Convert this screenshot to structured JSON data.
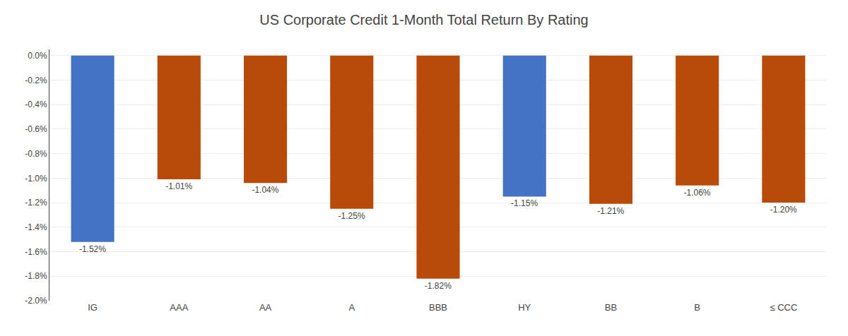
{
  "chart_data": {
    "type": "bar",
    "title": "US Corporate Credit 1-Month Total Return By Rating",
    "categories": [
      "IG",
      "AAA",
      "AA",
      "A",
      "BBB",
      "HY",
      "BB",
      "B",
      "≤ CCC"
    ],
    "values": [
      -1.52,
      -1.01,
      -1.04,
      -1.25,
      -1.82,
      -1.15,
      -1.21,
      -1.06,
      -1.2
    ],
    "value_labels": [
      "-1.52%",
      "-1.01%",
      "-1.04%",
      "-1.25%",
      "-1.82%",
      "-1.15%",
      "-1.21%",
      "-1.06%",
      "-1.20%"
    ],
    "colors": [
      "#4472C4",
      "#B84A0A",
      "#B84A0A",
      "#B84A0A",
      "#B84A0A",
      "#4472C4",
      "#B84A0A",
      "#B84A0A",
      "#B84A0A"
    ],
    "ylim": [
      -2.0,
      0.05
    ],
    "yticks": [
      {
        "value": 0.0,
        "label": "0.0%"
      },
      {
        "value": -0.2,
        "label": "-0.2%"
      },
      {
        "value": -0.4,
        "label": "-0.4%"
      },
      {
        "value": -0.6,
        "label": "-0.6%"
      },
      {
        "value": -0.8,
        "label": "-0.8%"
      },
      {
        "value": -1.0,
        "label": "-1.0%"
      },
      {
        "value": -1.2,
        "label": "-1.2%"
      },
      {
        "value": -1.4,
        "label": "-1.4%"
      },
      {
        "value": -1.6,
        "label": "-1.6%"
      },
      {
        "value": -1.8,
        "label": "-1.8%"
      },
      {
        "value": -2.0,
        "label": "-2.0%"
      }
    ],
    "grid": true,
    "data_labels": true
  }
}
